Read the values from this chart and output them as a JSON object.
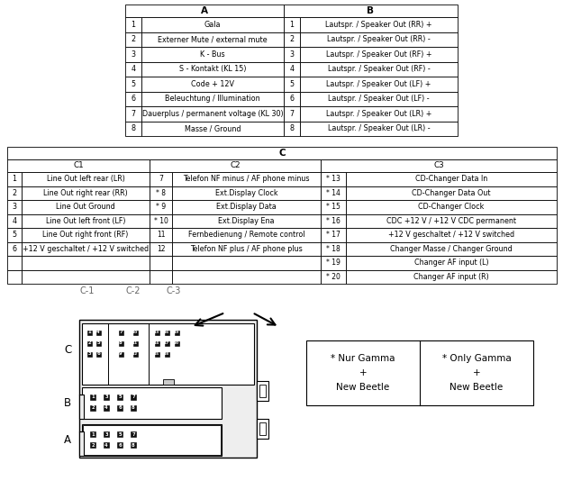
{
  "bg_color": "#ffffff",
  "table_AB_rows": [
    [
      1,
      "Gala",
      1,
      "Lautspr. / Speaker Out (RR) +"
    ],
    [
      2,
      "Externer Mute / external mute",
      2,
      "Lautspr. / Speaker Out (RR) -"
    ],
    [
      3,
      "K - Bus",
      3,
      "Lautspr. / Speaker Out (RF) +"
    ],
    [
      4,
      "S - Kontakt (KL 15)",
      4,
      "Lautspr. / Speaker Out (RF) -"
    ],
    [
      5,
      "Code + 12V",
      5,
      "Lautspr. / Speaker Out (LF) +"
    ],
    [
      6,
      "Beleuchtung / Illumination",
      6,
      "Lautspr. / Speaker Out (LF) -"
    ],
    [
      7,
      "Dauerplus / permanent voltage (KL 30)",
      7,
      "Lautspr. / Speaker Out (LR) +"
    ],
    [
      8,
      "Masse / Ground",
      8,
      "Lautspr. / Speaker Out (LR) -"
    ]
  ],
  "table_C_rows": [
    [
      "1",
      "Line Out left rear (LR)",
      "7",
      "Telefon NF minus / AF phone minus",
      "* 13",
      "CD-Changer Data In"
    ],
    [
      "2",
      "Line Out right rear (RR)",
      "* 8",
      "Ext.Display Clock",
      "* 14",
      "CD-Changer Data Out"
    ],
    [
      "3",
      "Line Out Ground",
      "* 9",
      "Ext.Display Data",
      "* 15",
      "CD-Changer Clock"
    ],
    [
      "4",
      "Line Out left front (LF)",
      "* 10",
      "Ext.Display Ena",
      "* 16",
      "CDC +12 V / +12 V CDC permanent"
    ],
    [
      "5",
      "Line Out right front (RF)",
      "11",
      "Fernbedienung / Remote control",
      "* 17",
      "+12 V geschaltet / +12 V switched"
    ],
    [
      "6",
      "+12 V geschaltet / +12 V switched",
      "12",
      "Telefon NF plus / AF phone plus",
      "* 18",
      "Changer Masse / Changer Ground"
    ],
    [
      "",
      "",
      "",
      "",
      "* 19",
      "Changer AF input (L)"
    ],
    [
      "",
      "",
      "",
      "",
      "* 20",
      "Changer AF input (R)"
    ]
  ]
}
